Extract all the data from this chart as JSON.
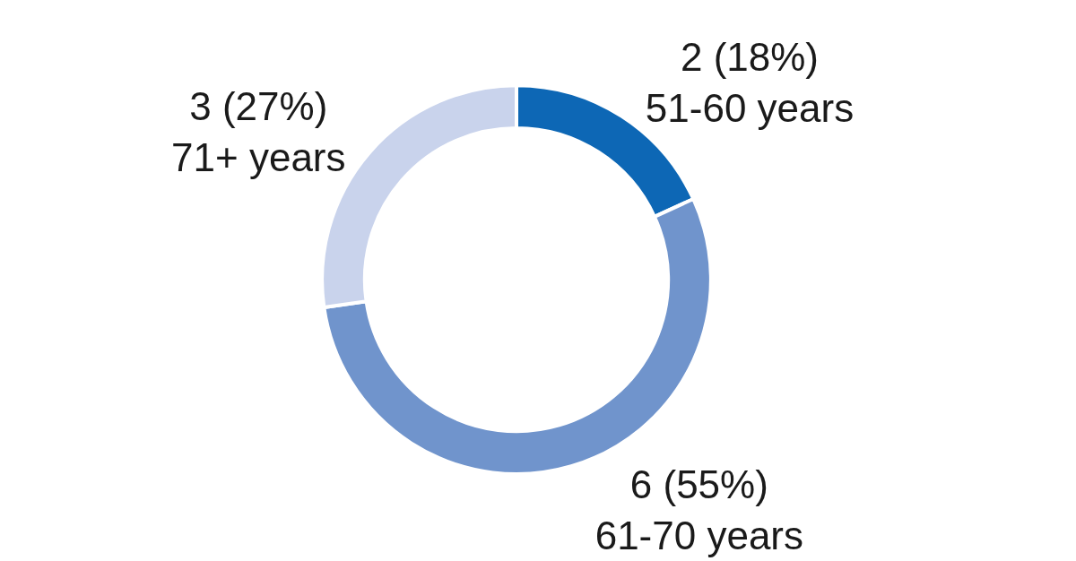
{
  "chart_data": {
    "type": "donut",
    "categories": [
      "51-60 years",
      "61-70 years",
      "71+ years"
    ],
    "values": [
      2,
      6,
      3
    ],
    "value_labels": [
      "2 (18%)",
      "6 (55%)",
      "3 (27%)"
    ],
    "colors": [
      "#0d67b5",
      "#7094cc",
      "#c9d3ec"
    ],
    "legend": false
  }
}
